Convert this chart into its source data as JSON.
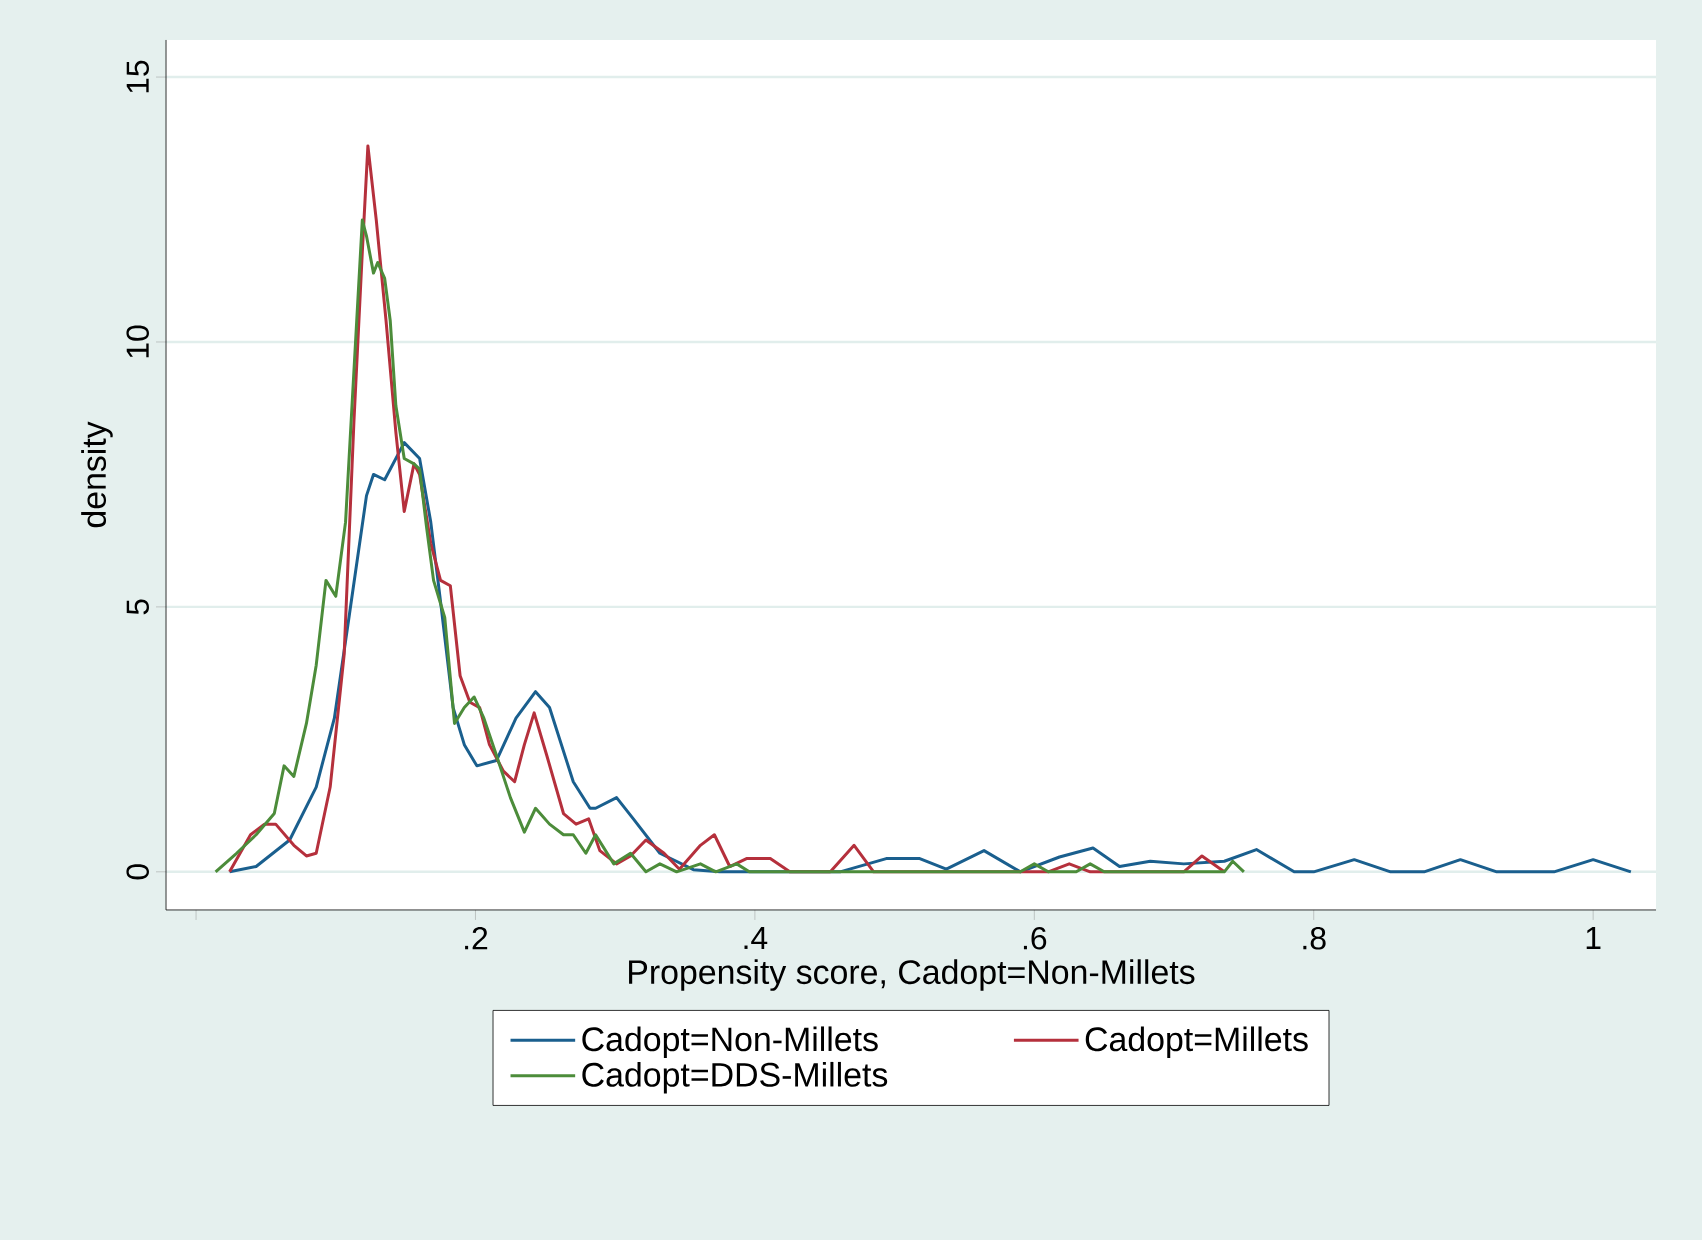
{
  "chart_data": {
    "type": "line",
    "xlabel": "Propensity score, Cadopt=Non-Millets",
    "ylabel": "density",
    "xlim": [
      -0.0215,
      1.045
    ],
    "ylim": [
      -0.72,
      15.7
    ],
    "xticks": [
      {
        "value": 0,
        "label": null
      },
      {
        "value": 0.2,
        "label": ".2"
      },
      {
        "value": 0.4,
        "label": ".4"
      },
      {
        "value": 0.6,
        "label": ".6"
      },
      {
        "value": 0.8,
        "label": ".8"
      },
      1
    ],
    "yticks": [
      0,
      5,
      10,
      15
    ],
    "grid": "y",
    "legend": "bottom",
    "line_style": "solid",
    "marker": "none",
    "series": [
      {
        "name": "Cadopt=Non-Millets",
        "color": "#1a5f8e",
        "x": [
          0.024,
          0.043,
          0.067,
          0.086,
          0.099,
          0.11,
          0.122,
          0.127,
          0.135,
          0.149,
          0.16,
          0.168,
          0.175,
          0.184,
          0.192,
          0.201,
          0.215,
          0.229,
          0.243,
          0.253,
          0.27,
          0.282,
          0.286,
          0.301,
          0.313,
          0.332,
          0.356,
          0.375,
          0.461,
          0.494,
          0.518,
          0.537,
          0.564,
          0.59,
          0.618,
          0.642,
          0.661,
          0.683,
          0.707,
          0.736,
          0.759,
          0.786,
          0.8,
          0.829,
          0.855,
          0.879,
          0.905,
          0.931,
          0.972,
          1.0,
          1.027
        ],
        "values": [
          0,
          0.1,
          0.6,
          1.6,
          2.9,
          4.9,
          7.1,
          7.5,
          7.4,
          8.1,
          7.8,
          6.6,
          5.1,
          3.1,
          2.4,
          2.0,
          2.1,
          2.9,
          3.4,
          3.1,
          1.7,
          1.2,
          1.2,
          1.4,
          1.0,
          0.35,
          0.04,
          0,
          0,
          0.25,
          0.25,
          0.05,
          0.4,
          0,
          0.28,
          0.45,
          0.1,
          0.2,
          0.15,
          0.2,
          0.42,
          0,
          0,
          0.23,
          0,
          0,
          0.23,
          0,
          0,
          0.23,
          0
        ]
      },
      {
        "name": "Cadopt=Millets",
        "color": "#b5303c",
        "x": [
          0.024,
          0.039,
          0.049,
          0.057,
          0.07,
          0.079,
          0.086,
          0.096,
          0.106,
          0.113,
          0.119,
          0.123,
          0.129,
          0.136,
          0.143,
          0.149,
          0.156,
          0.16,
          0.168,
          0.175,
          0.182,
          0.189,
          0.196,
          0.203,
          0.21,
          0.22,
          0.228,
          0.235,
          0.242,
          0.251,
          0.263,
          0.272,
          0.281,
          0.289,
          0.301,
          0.311,
          0.322,
          0.335,
          0.346,
          0.361,
          0.371,
          0.382,
          0.394,
          0.411,
          0.425,
          0.454,
          0.471,
          0.485,
          0.61,
          0.625,
          0.64,
          0.707,
          0.72,
          0.736
        ],
        "values": [
          0,
          0.7,
          0.9,
          0.9,
          0.5,
          0.3,
          0.35,
          1.6,
          4.1,
          8.5,
          11.7,
          13.7,
          12.3,
          10.4,
          8.3,
          6.8,
          7.7,
          7.5,
          6.2,
          5.5,
          5.4,
          3.7,
          3.2,
          3.1,
          2.4,
          1.9,
          1.7,
          2.4,
          3.0,
          2.2,
          1.1,
          0.9,
          1.0,
          0.4,
          0.15,
          0.3,
          0.6,
          0.35,
          0.05,
          0.5,
          0.7,
          0.1,
          0.25,
          0.25,
          0,
          0,
          0.5,
          0,
          0,
          0.15,
          0,
          0,
          0.3,
          0
        ]
      },
      {
        "name": "Cadopt=DDS-Millets",
        "color": "#4c8c3a",
        "x": [
          0.014,
          0.029,
          0.043,
          0.056,
          0.063,
          0.07,
          0.079,
          0.086,
          0.093,
          0.1,
          0.107,
          0.115,
          0.119,
          0.122,
          0.127,
          0.13,
          0.135,
          0.139,
          0.143,
          0.149,
          0.156,
          0.16,
          0.165,
          0.17,
          0.178,
          0.185,
          0.192,
          0.199,
          0.206,
          0.215,
          0.225,
          0.235,
          0.243,
          0.253,
          0.263,
          0.27,
          0.279,
          0.286,
          0.299,
          0.311,
          0.322,
          0.332,
          0.344,
          0.361,
          0.372,
          0.387,
          0.396,
          0.59,
          0.6,
          0.61,
          0.63,
          0.64,
          0.65,
          0.736,
          0.742,
          0.75
        ],
        "values": [
          0,
          0.35,
          0.7,
          1.1,
          2.0,
          1.8,
          2.8,
          3.9,
          5.5,
          5.2,
          6.6,
          10.4,
          12.3,
          12.0,
          11.3,
          11.5,
          11.2,
          10.4,
          8.8,
          7.8,
          7.7,
          7.6,
          6.5,
          5.5,
          4.8,
          2.8,
          3.1,
          3.3,
          2.9,
          2.2,
          1.4,
          0.75,
          1.2,
          0.9,
          0.7,
          0.7,
          0.35,
          0.7,
          0.15,
          0.35,
          0,
          0.15,
          0,
          0.15,
          0,
          0.15,
          0,
          0,
          0.15,
          0,
          0,
          0.15,
          0,
          0,
          0.2,
          0
        ]
      }
    ]
  }
}
